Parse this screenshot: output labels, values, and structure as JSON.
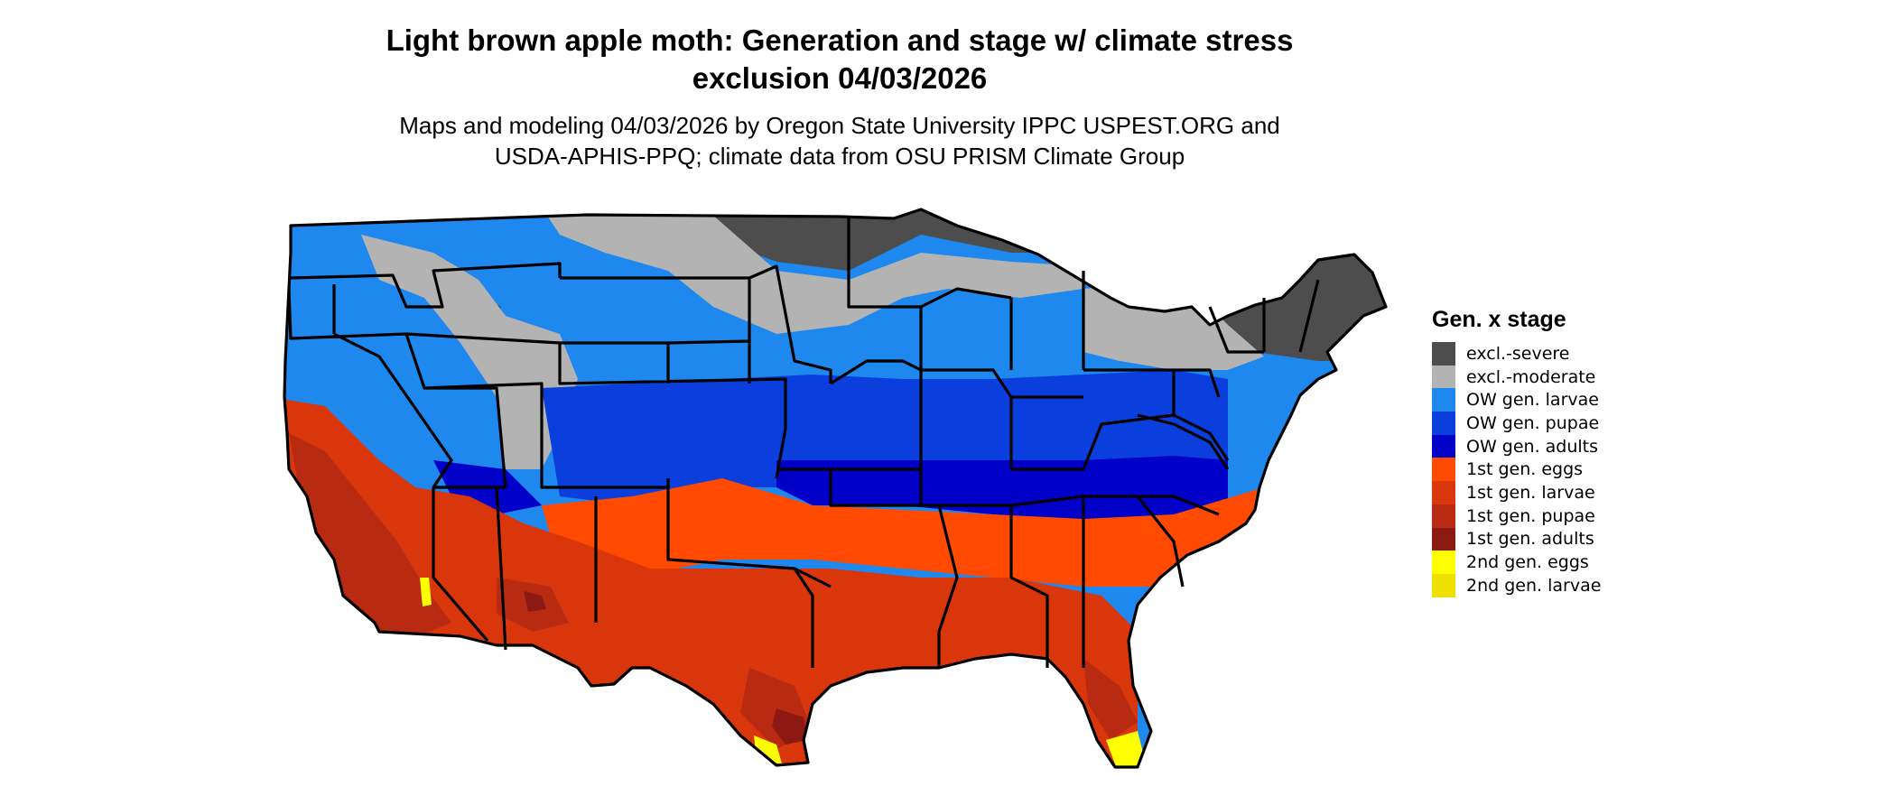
{
  "title_line1": "Light brown apple moth: Generation and stage w/ climate stress",
  "title_line2": "exclusion 04/03/2026",
  "subtitle_line1": "Maps and modeling 04/03/2026 by Oregon State University IPPC USPEST.ORG and",
  "subtitle_line2": "USDA-APHIS-PPQ; climate data from OSU PRISM Climate Group",
  "legend": {
    "title": "Gen. x stage",
    "items": [
      {
        "label": "excl.-severe",
        "color": "#4d4d4d"
      },
      {
        "label": "excl.-moderate",
        "color": "#b3b3b3"
      },
      {
        "label": "OW gen. larvae",
        "color": "#1e88ee"
      },
      {
        "label": "OW gen. pupae",
        "color": "#0a3fdd"
      },
      {
        "label": "OW gen. adults",
        "color": "#0000c8"
      },
      {
        "label": "1st gen. eggs",
        "color": "#ff4a00"
      },
      {
        "label": "1st gen. larvae",
        "color": "#d9360c"
      },
      {
        "label": "1st gen. pupae",
        "color": "#b82a12"
      },
      {
        "label": "1st gen. adults",
        "color": "#8c1a12"
      },
      {
        "label": "2nd gen. eggs",
        "color": "#ffff00"
      },
      {
        "label": "2nd gen. larvae",
        "color": "#eee000"
      }
    ]
  }
}
